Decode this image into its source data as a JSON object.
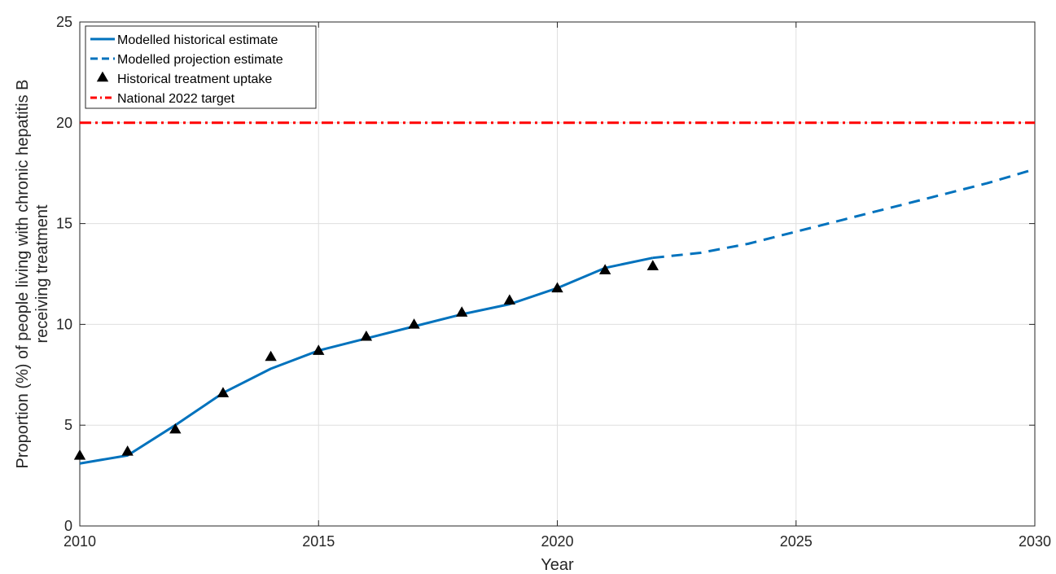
{
  "chart_data": {
    "type": "line",
    "title": "",
    "xlabel": "Year",
    "ylabel": [
      "Proportion (%) of people living with chronic hepatitis B",
      "receiving treatment"
    ],
    "xlim": [
      2010,
      2030
    ],
    "ylim": [
      0,
      25
    ],
    "x_ticks": [
      2010,
      2015,
      2020,
      2025,
      2030
    ],
    "y_ticks": [
      0,
      5,
      10,
      15,
      20,
      25
    ],
    "grid": true,
    "legend_position": "top-left",
    "series": [
      {
        "name": "Modelled historical estimate",
        "kind": "line",
        "style": "solid",
        "color": "#0072bd",
        "x": [
          2010,
          2011,
          2012,
          2013,
          2014,
          2015,
          2016,
          2017,
          2018,
          2019,
          2020,
          2021,
          2022
        ],
        "y": [
          3.1,
          3.5,
          5.0,
          6.6,
          7.8,
          8.7,
          9.3,
          9.9,
          10.5,
          11.0,
          11.8,
          12.8,
          13.3
        ]
      },
      {
        "name": "Modelled projection estimate",
        "kind": "line",
        "style": "dashed",
        "color": "#0072bd",
        "x": [
          2022,
          2023,
          2024,
          2025,
          2026,
          2027,
          2028,
          2029,
          2030
        ],
        "y": [
          13.3,
          13.55,
          14.0,
          14.6,
          15.2,
          15.8,
          16.4,
          17.0,
          17.7
        ]
      },
      {
        "name": "Historical treatment uptake",
        "kind": "scatter",
        "marker": "triangle",
        "color": "#000000",
        "x": [
          2010,
          2011,
          2012,
          2013,
          2014,
          2015,
          2016,
          2017,
          2018,
          2019,
          2020,
          2021,
          2022
        ],
        "y": [
          3.5,
          3.7,
          4.8,
          6.6,
          8.4,
          8.7,
          9.4,
          10.0,
          10.6,
          11.2,
          11.8,
          12.7,
          12.9
        ]
      },
      {
        "name": "National 2022 target",
        "kind": "hline",
        "style": "dashdot",
        "color": "#ff0000",
        "y": 20
      }
    ]
  }
}
